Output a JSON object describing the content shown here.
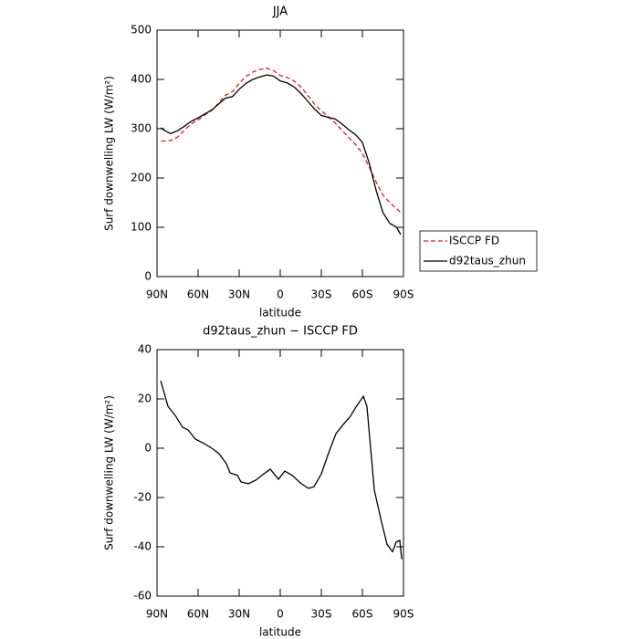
{
  "chart_data": [
    {
      "type": "line",
      "title": "JJA",
      "xlabel": "latitude",
      "ylabel": "Surf downwelling LW (W/m²)",
      "x": [
        87,
        85,
        80,
        75,
        70,
        65,
        60,
        55,
        50,
        45,
        40,
        35,
        30,
        25,
        20,
        15,
        10,
        5,
        0,
        -5,
        -10,
        -15,
        -20,
        -25,
        -30,
        -35,
        -40,
        -45,
        -50,
        -55,
        -60,
        -65,
        -70,
        -75,
        -80,
        -85,
        -88
      ],
      "series": [
        {
          "name": "ISCCP FD",
          "color": "#e41a1c",
          "linestyle": "dashed",
          "values": [
            275,
            275,
            276,
            283,
            297,
            310,
            318,
            328,
            337,
            352,
            368,
            375,
            392,
            406,
            415,
            420,
            423,
            418,
            408,
            404,
            397,
            385,
            368,
            350,
            336,
            325,
            312,
            297,
            282,
            268,
            250,
            222,
            192,
            165,
            150,
            138,
            130
          ]
        },
        {
          "name": "d92taus_zhun",
          "color": "#000000",
          "linestyle": "solid",
          "values": [
            302,
            297,
            290,
            296,
            305,
            315,
            322,
            330,
            338,
            350,
            362,
            365,
            380,
            392,
            400,
            405,
            409,
            407,
            397,
            393,
            385,
            372,
            356,
            340,
            327,
            323,
            320,
            310,
            298,
            288,
            272,
            230,
            175,
            130,
            108,
            100,
            85
          ]
        }
      ],
      "xlim": [
        90,
        -90
      ],
      "xticks": [
        {
          "value": 90,
          "label": "90N"
        },
        {
          "value": 60,
          "label": "60N"
        },
        {
          "value": 30,
          "label": "30N"
        },
        0,
        {
          "value": -30,
          "label": "30S"
        },
        {
          "value": -60,
          "label": "60S"
        },
        {
          "value": -90,
          "label": "90S"
        }
      ],
      "ylim": [
        0,
        500
      ],
      "yticks": [
        0,
        100,
        200,
        300,
        400,
        500
      ],
      "legend": "right"
    },
    {
      "type": "line",
      "title": "d92taus_zhun − ISCCP FD",
      "xlabel": "latitude",
      "ylabel": "Surf downwelling LW (W/m²)",
      "x": [
        87.3,
        82,
        76.7,
        71.3,
        67.3,
        62,
        56.7,
        50,
        44.7,
        39.3,
        36.7,
        31.3,
        28.7,
        23.3,
        18,
        12.7,
        7.3,
        1.3,
        -3.3,
        -8.7,
        -15.3,
        -20.7,
        -24.7,
        -30,
        -35.3,
        -40.7,
        -46,
        -51.3,
        -55.3,
        -60.7,
        -63.3,
        -68.7,
        -74,
        -78,
        -82,
        -84.7,
        -87.3,
        -88.7
      ],
      "series": [
        {
          "name": "d92taus_zhun − ISCCP FD",
          "color": "#000000",
          "linestyle": "solid",
          "values": [
            27.4,
            17,
            13.3,
            8.5,
            7.4,
            3.7,
            2.2,
            0,
            -2.2,
            -6.3,
            -10,
            -11,
            -13.7,
            -14.4,
            -13,
            -10.7,
            -8.5,
            -12.6,
            -9.3,
            -11,
            -14.4,
            -16.3,
            -15.6,
            -10.4,
            -1.9,
            5.9,
            9.6,
            13,
            16.7,
            21.1,
            17,
            -17,
            -30,
            -39,
            -42,
            -38,
            -37.4,
            -45
          ]
        }
      ],
      "xlim": [
        90,
        -90
      ],
      "xticks": [
        {
          "value": 90,
          "label": "90N"
        },
        {
          "value": 60,
          "label": "60N"
        },
        {
          "value": 30,
          "label": "30N"
        },
        0,
        {
          "value": -30,
          "label": "30S"
        },
        {
          "value": -60,
          "label": "60S"
        },
        {
          "value": -90,
          "label": "90S"
        }
      ],
      "ylim": [
        -60,
        40
      ],
      "yticks": [
        -60,
        -40,
        -20,
        0,
        20,
        40
      ]
    }
  ]
}
